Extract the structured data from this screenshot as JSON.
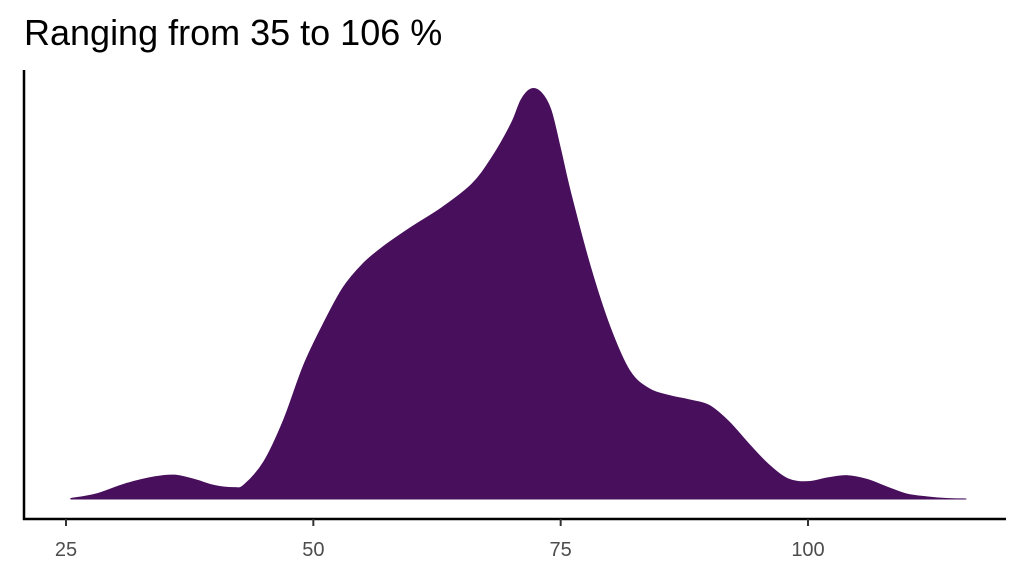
{
  "chart_data": {
    "type": "area",
    "subtype": "density",
    "title": "Ranging from 35 to 106 %",
    "xlabel": "",
    "ylabel": "",
    "xlim": [
      21.5,
      1000
    ],
    "x_axis_ticks": [
      25,
      50,
      75,
      100
    ],
    "y_axis_ticks": [],
    "grid": false,
    "legend": "none",
    "fill_color": "#48105c",
    "axis_color": "#000000",
    "tick_label_color": "#4d4d4d",
    "x": [
      25.5,
      28,
      31,
      34,
      36,
      38,
      40,
      42,
      43,
      45,
      47,
      49,
      51,
      53,
      55,
      57,
      60,
      63,
      66,
      68,
      70,
      71,
      72,
      73,
      74,
      75,
      76,
      78,
      80,
      82,
      84,
      86,
      88,
      90,
      92,
      94,
      96,
      98,
      100,
      102,
      104,
      106,
      108,
      110,
      112,
      114,
      116
    ],
    "density": [
      0.001,
      0.009,
      0.028,
      0.041,
      0.044,
      0.036,
      0.025,
      0.021,
      0.026,
      0.069,
      0.146,
      0.246,
      0.323,
      0.39,
      0.434,
      0.465,
      0.503,
      0.538,
      0.581,
      0.629,
      0.693,
      0.737,
      0.757,
      0.751,
      0.719,
      0.645,
      0.566,
      0.429,
      0.317,
      0.236,
      0.203,
      0.191,
      0.183,
      0.173,
      0.143,
      0.102,
      0.064,
      0.037,
      0.032,
      0.039,
      0.043,
      0.036,
      0.022,
      0.009,
      0.004,
      0.001,
      0.0
    ]
  }
}
